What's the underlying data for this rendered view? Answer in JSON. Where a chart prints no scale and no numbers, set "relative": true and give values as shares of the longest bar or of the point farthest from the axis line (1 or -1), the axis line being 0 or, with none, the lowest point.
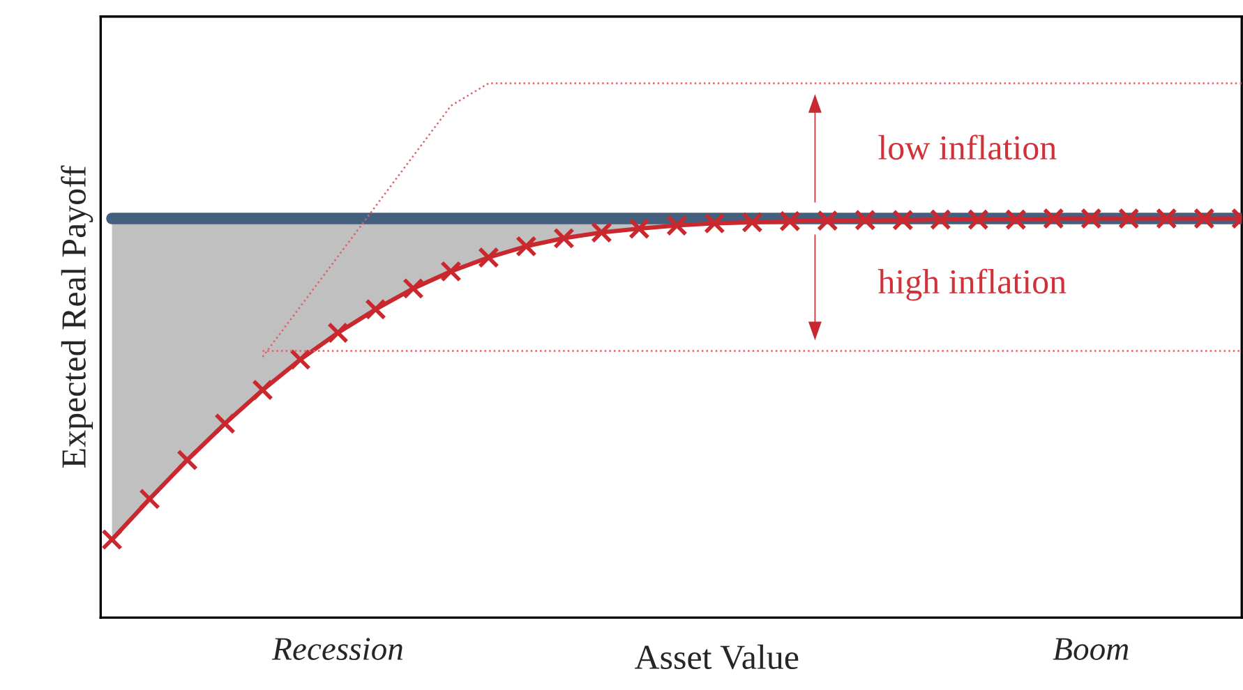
{
  "chart_data": {
    "type": "line",
    "relative": true,
    "ylabel": "Expected Real Payoff",
    "xlabel": "Asset Value",
    "categories": [
      null,
      null,
      null,
      null,
      null,
      null,
      "Recession",
      null,
      null,
      null,
      null,
      null,
      null,
      null,
      null,
      null,
      null,
      null,
      null,
      null,
      null,
      null,
      null,
      null,
      null,
      null,
      "Boom",
      null,
      null,
      null,
      null
    ],
    "grid": false,
    "legend": false,
    "series": [
      {
        "color": "#44607f",
        "marker": "none",
        "line_style": "solid",
        "values": [
          0.747,
          0.747,
          0.747,
          0.747,
          0.747,
          0.747,
          0.747,
          0.747,
          0.747,
          0.747,
          0.747,
          0.747,
          0.747,
          0.747,
          0.747,
          0.747,
          0.747,
          0.747,
          0.747,
          0.747,
          0.747,
          0.747,
          0.747,
          0.747,
          0.747,
          0.747,
          0.747,
          0.747,
          0.747,
          0.747,
          0.747
        ]
      },
      {
        "color": "#c8282e",
        "marker": "cross",
        "line_style": "solid",
        "values": [
          0.146,
          0.222,
          0.295,
          0.363,
          0.426,
          0.483,
          0.533,
          0.577,
          0.616,
          0.648,
          0.674,
          0.695,
          0.71,
          0.721,
          0.728,
          0.734,
          0.738,
          0.74,
          0.742,
          0.743,
          0.744,
          0.744,
          0.745,
          0.745,
          0.745,
          0.747,
          0.747,
          0.747,
          0.747,
          0.747,
          0.747
        ],
        "lower": [
          0.146,
          0.222,
          0.295,
          0.363,
          0.426,
          0.483,
          0.533,
          0.577,
          0.616,
          0.648,
          0.674,
          0.695,
          0.71,
          0.721,
          0.728,
          0.734,
          0.738,
          0.74,
          0.742,
          0.743,
          0.744,
          0.744,
          0.745,
          0.745,
          0.745,
          0.747,
          0.747,
          0.747,
          0.747,
          0.747,
          0.747
        ],
        "upper": [
          0.747,
          0.747,
          0.747,
          0.747,
          0.747,
          0.747,
          0.747,
          0.747,
          0.747,
          0.747,
          0.747,
          0.747,
          0.747,
          0.747,
          0.747,
          0.747,
          0.747,
          0.747,
          0.747,
          0.747,
          0.747,
          0.747,
          0.747,
          0.747,
          0.747,
          0.747,
          0.747,
          0.747,
          0.747,
          0.747,
          0.747
        ]
      },
      {
        "color": "#e0606a",
        "marker": "none",
        "line_style": "dotted",
        "values": [
          null,
          null,
          null,
          null,
          0.488,
          0.582,
          0.676,
          0.77,
          0.864,
          0.958,
          1.0,
          1.0,
          1.0,
          1.0,
          1.0,
          1.0,
          1.0,
          1.0,
          1.0,
          1.0,
          1.0,
          1.0,
          1.0,
          1.0,
          1.0,
          1.0,
          1.0,
          1.0,
          1.0,
          1.0,
          1.0
        ]
      },
      {
        "color": "#e0606a",
        "marker": "none",
        "line_style": "dotted",
        "values": [
          null,
          null,
          null,
          null,
          0.499,
          0.499,
          0.499,
          0.499,
          0.499,
          0.499,
          0.499,
          0.499,
          0.499,
          0.499,
          0.499,
          0.499,
          0.499,
          0.499,
          0.499,
          0.499,
          0.499,
          0.499,
          0.499,
          0.499,
          0.499,
          0.499,
          0.499,
          0.499,
          0.499,
          0.499,
          0.499
        ]
      }
    ],
    "annotations": [
      {
        "text": "low inflation",
        "y": 1.0
      },
      {
        "text": "high inflation",
        "y": 0.499
      }
    ]
  }
}
